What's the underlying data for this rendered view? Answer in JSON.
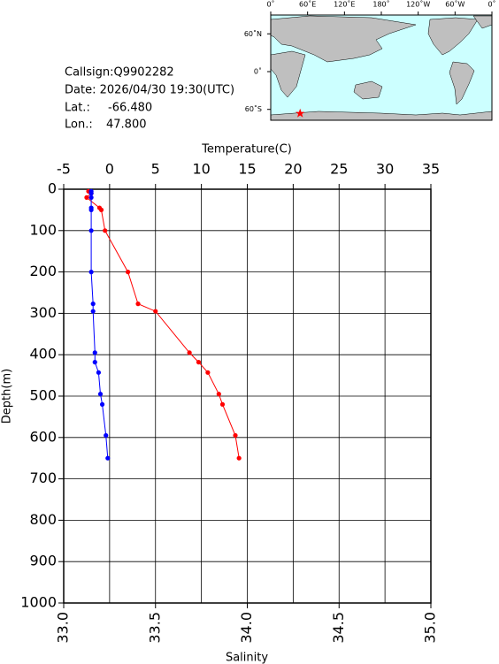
{
  "chart_data": {
    "type": "line",
    "station": {
      "callsign": "Callsign:Q9902282",
      "date": "Date:  2026/04/30 19:30(UTC)",
      "lat": {
        "label": "Lat.:",
        "value": -66.48,
        "text": "-66.480"
      },
      "lon": {
        "label": "Lon.:",
        "value": 47.8,
        "text": "47.800"
      }
    },
    "map": {
      "lon_ticks": [
        {
          "value": 0,
          "label": "0˚"
        },
        {
          "value": 60,
          "label": "60˚E"
        },
        {
          "value": 120,
          "label": "120˚E"
        },
        {
          "value": 180,
          "label": "180˚"
        },
        {
          "value": 240,
          "label": "120˚W"
        },
        {
          "value": 300,
          "label": "60˚W"
        },
        {
          "value": 360,
          "label": "0˚"
        }
      ],
      "lat_ticks": [
        {
          "value": 60,
          "label": "60˚N"
        },
        {
          "value": 0,
          "label": "0˚"
        },
        {
          "value": -60,
          "label": "60˚S"
        }
      ]
    },
    "ylabel": "Depth(m)",
    "ylim": [
      0,
      1000
    ],
    "y_inverted": true,
    "yticks": [
      0,
      100,
      200,
      300,
      400,
      500,
      600,
      700,
      800,
      900,
      1000
    ],
    "xlabel": "Salinity",
    "xlim": [
      33,
      35
    ],
    "xticks": [
      {
        "value": 33,
        "label": "33.0"
      },
      {
        "value": 33.5,
        "label": "33.5"
      },
      {
        "value": 34,
        "label": "34.0"
      },
      {
        "value": 34.5,
        "label": "34.5"
      },
      {
        "value": 35,
        "label": "35.0"
      }
    ],
    "x2label": "Temperature(C)",
    "x2lim": [
      -5,
      35
    ],
    "x2ticks": [
      -5,
      0,
      5,
      10,
      15,
      20,
      25,
      30,
      35
    ],
    "grid": true,
    "depth": [
      5,
      10,
      20,
      45,
      50,
      100,
      200,
      277,
      295,
      395,
      418,
      443,
      495,
      520,
      595,
      650
    ],
    "series": [
      {
        "name": "Temperature",
        "axis": "x2",
        "color": "#ff0000",
        "values": [
          -2.3,
          -2.0,
          -2.5,
          -1.1,
          -0.9,
          -0.5,
          2.0,
          3.1,
          5.0,
          8.7,
          9.7,
          10.7,
          11.9,
          12.3,
          13.7,
          14.1
        ]
      },
      {
        "name": "Salinity",
        "axis": "x",
        "color": "#0000ff",
        "values": [
          33.15,
          33.15,
          33.15,
          33.15,
          33.15,
          33.15,
          33.15,
          33.16,
          33.16,
          33.17,
          33.17,
          33.19,
          33.2,
          33.21,
          33.23,
          33.24
        ]
      }
    ]
  }
}
